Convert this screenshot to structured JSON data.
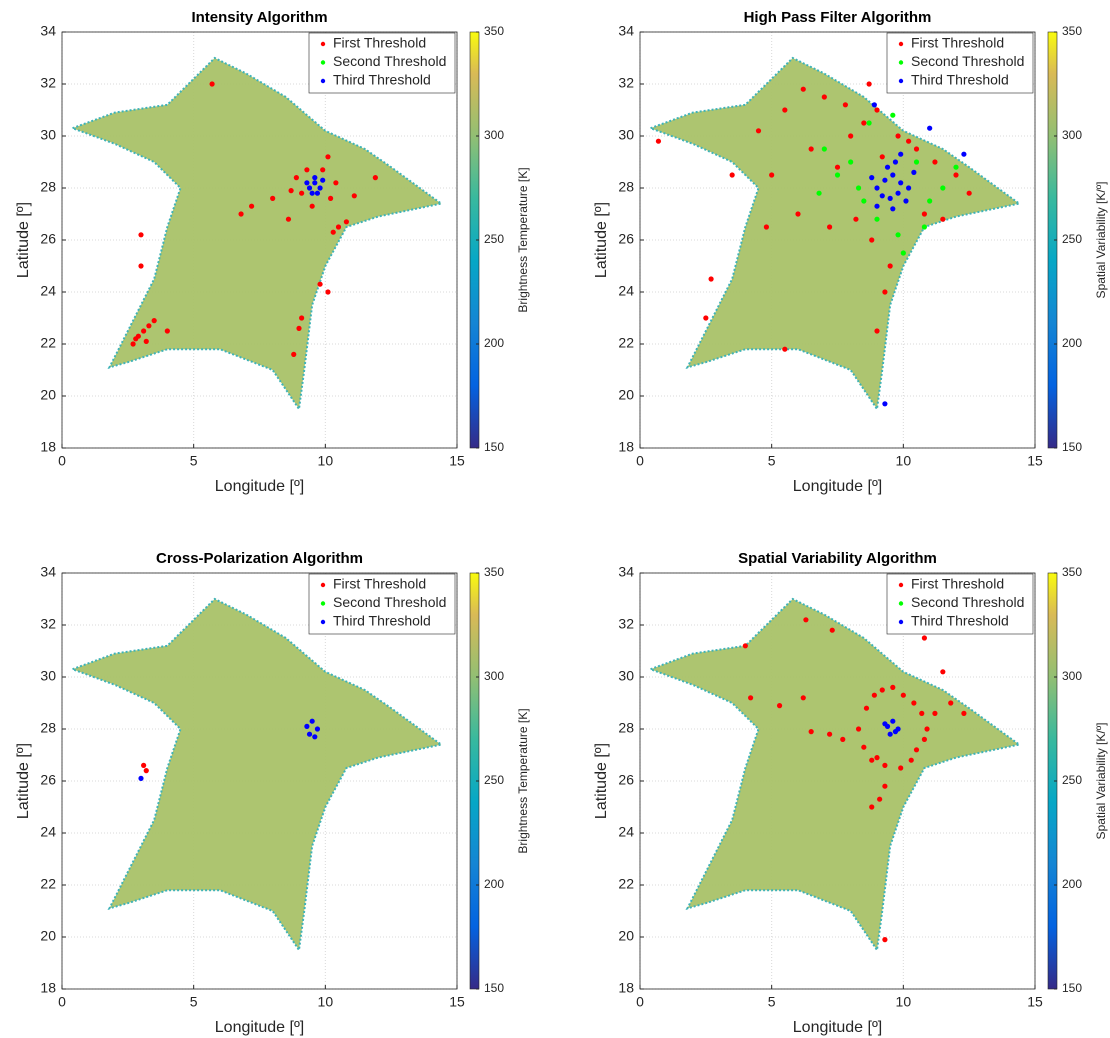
{
  "chart_data": [
    {
      "type": "scatter",
      "title": "Intensity Algorithm",
      "xlabel": "Longitude [º]",
      "ylabel": "Latitude [º]",
      "colorbar_label": "Brightness Temperature [K]",
      "xlim": [
        0,
        15
      ],
      "ylim": [
        18,
        34
      ],
      "xticks": [
        0,
        5,
        10,
        15
      ],
      "yticks": [
        18,
        20,
        22,
        24,
        26,
        28,
        30,
        32,
        34
      ],
      "clim": [
        150,
        350
      ],
      "cticks": [
        150,
        200,
        250,
        300,
        350
      ],
      "grid": true,
      "legend": "upper right",
      "footprint": {
        "color": "#a9c268",
        "x": [
          0.4,
          2,
          4,
          5.8,
          7,
          8.5,
          10,
          11.5,
          12.5,
          14.4,
          12,
          10.8,
          10,
          9.5,
          9.2,
          9,
          8,
          6,
          4,
          2.5,
          1.8,
          2.5,
          3.5,
          4,
          4.5,
          3.5,
          2
        ],
        "y": [
          30.3,
          30.9,
          31.2,
          33,
          32.4,
          31.5,
          30.2,
          29.5,
          28.8,
          27.4,
          26.9,
          26.5,
          25,
          23.5,
          21,
          19.5,
          21,
          21.8,
          21.8,
          21.3,
          21.1,
          22.5,
          24.5,
          26.5,
          28,
          29,
          29.7
        ]
      },
      "series": [
        {
          "name": "First Threshold",
          "color": "#ff0000",
          "x": [
            8.9,
            9.1,
            9.3,
            9.9,
            10.2,
            10.4,
            8.7,
            9.5,
            10.1,
            11.1,
            11.9,
            10.5,
            10.8,
            10.3,
            10.1,
            9.8,
            9.1,
            9.0,
            8.8,
            2.7,
            2.9,
            3.1,
            3.3,
            3.5,
            2.8,
            3.2,
            4.0,
            3.0,
            3.0,
            7.2,
            6.8,
            8.0,
            8.6,
            5.7
          ],
          "values": [
            28.4,
            27.8,
            28.7,
            28.7,
            27.6,
            28.2,
            27.9,
            27.3,
            29.2,
            27.7,
            28.4,
            26.5,
            26.7,
            26.3,
            24.0,
            24.3,
            23.0,
            22.6,
            21.6,
            22.0,
            22.3,
            22.5,
            22.7,
            22.9,
            22.2,
            22.1,
            22.5,
            26.2,
            25.0,
            27.3,
            27.0,
            27.6,
            26.8,
            32.0
          ]
        },
        {
          "name": "Second Threshold",
          "color": "#00ff00",
          "x": [],
          "values": []
        },
        {
          "name": "Third Threshold",
          "color": "#0000ff",
          "x": [
            9.4,
            9.6,
            9.8,
            9.5,
            9.7,
            9.3,
            9.9,
            9.6
          ],
          "values": [
            28.0,
            28.2,
            28.0,
            27.8,
            27.8,
            28.2,
            28.3,
            28.4
          ]
        }
      ]
    },
    {
      "type": "scatter",
      "title": "High Pass Filter Algorithm",
      "xlabel": "Longitude [º]",
      "ylabel": "Latitude [º]",
      "colorbar_label": "Spatial Variability [K/º]",
      "xlim": [
        0,
        15
      ],
      "ylim": [
        18,
        34
      ],
      "xticks": [
        0,
        5,
        10,
        15
      ],
      "yticks": [
        18,
        20,
        22,
        24,
        26,
        28,
        30,
        32,
        34
      ],
      "clim": [
        150,
        350
      ],
      "cticks": [
        150,
        200,
        250,
        300,
        350
      ],
      "grid": true,
      "legend": "upper right",
      "footprint": {
        "color": "#a9c268",
        "x": [
          0.4,
          2,
          4,
          5.8,
          7,
          8.5,
          10,
          11.5,
          12.5,
          14.4,
          12,
          10.8,
          10,
          9.5,
          9.2,
          9,
          8,
          6,
          4,
          2.5,
          1.8,
          2.5,
          3.5,
          4,
          4.5,
          3.5,
          2
        ],
        "y": [
          30.3,
          30.9,
          31.2,
          33,
          32.4,
          31.5,
          30.2,
          29.5,
          28.8,
          27.4,
          26.9,
          26.5,
          25,
          23.5,
          21,
          19.5,
          21,
          21.8,
          21.8,
          21.3,
          21.1,
          22.5,
          24.5,
          26.5,
          28,
          29,
          29.7
        ]
      },
      "series": [
        {
          "name": "First Threshold",
          "color": "#ff0000",
          "x": [
            5.5,
            6.2,
            7.0,
            7.8,
            8.5,
            9.0,
            9.8,
            10.5,
            11.2,
            12.0,
            4.5,
            5.0,
            6.0,
            7.2,
            8.2,
            8.8,
            10.8,
            11.5,
            6.5,
            7.5,
            8.0,
            9.2,
            10.2,
            9.5,
            9.3,
            9.0,
            2.5,
            2.7,
            5.5,
            0.7,
            3.5,
            4.8,
            12.5,
            8.7
          ],
          "values": [
            31.0,
            31.8,
            31.5,
            31.2,
            30.5,
            31.0,
            30.0,
            29.5,
            29.0,
            28.5,
            30.2,
            28.5,
            27.0,
            26.5,
            26.8,
            26.0,
            27.0,
            26.8,
            29.5,
            28.8,
            30.0,
            29.2,
            29.8,
            25.0,
            24.0,
            22.5,
            23.0,
            24.5,
            21.8,
            29.8,
            28.5,
            26.5,
            27.8,
            32.0
          ]
        },
        {
          "name": "Second Threshold",
          "color": "#00ff00",
          "x": [
            7.5,
            8.0,
            8.5,
            9.0,
            10.5,
            11.0,
            8.3,
            10.8,
            9.8,
            7.0,
            11.5,
            8.7,
            9.6,
            10.0,
            12.0,
            6.8
          ],
          "values": [
            28.5,
            29.0,
            27.5,
            26.8,
            29.0,
            27.5,
            28.0,
            26.5,
            26.2,
            29.5,
            28.0,
            30.5,
            30.8,
            25.5,
            28.8,
            27.8
          ]
        },
        {
          "name": "Third Threshold",
          "color": "#0000ff",
          "x": [
            9.0,
            9.3,
            9.6,
            9.9,
            10.2,
            9.2,
            9.5,
            9.8,
            10.1,
            9.4,
            9.7,
            8.8,
            10.4,
            9.0,
            9.6,
            9.9,
            11.0,
            8.9,
            12.3,
            9.3
          ],
          "values": [
            28.0,
            28.3,
            28.5,
            28.2,
            28.0,
            27.7,
            27.6,
            27.8,
            27.5,
            28.8,
            29.0,
            28.4,
            28.6,
            27.3,
            27.2,
            29.3,
            30.3,
            31.2,
            29.3,
            19.7
          ]
        }
      ]
    },
    {
      "type": "scatter",
      "title": "Cross-Polarization Algorithm",
      "xlabel": "Longitude [º]",
      "ylabel": "Latitude [º]",
      "colorbar_label": "Brightness Temperature [K]",
      "xlim": [
        0,
        15
      ],
      "ylim": [
        18,
        34
      ],
      "xticks": [
        0,
        5,
        10,
        15
      ],
      "yticks": [
        18,
        20,
        22,
        24,
        26,
        28,
        30,
        32,
        34
      ],
      "clim": [
        150,
        350
      ],
      "cticks": [
        150,
        200,
        250,
        300,
        350
      ],
      "grid": true,
      "legend": "upper right",
      "footprint": {
        "color": "#a9c268",
        "x": [
          0.4,
          2,
          4,
          5.8,
          7,
          8.5,
          10,
          11.5,
          12.5,
          14.4,
          12,
          10.8,
          10,
          9.5,
          9.2,
          9,
          8,
          6,
          4,
          2.5,
          1.8,
          2.5,
          3.5,
          4,
          4.5,
          3.5,
          2
        ],
        "y": [
          30.3,
          30.9,
          31.2,
          33,
          32.4,
          31.5,
          30.2,
          29.5,
          28.8,
          27.4,
          26.9,
          26.5,
          25,
          23.5,
          21,
          19.5,
          21,
          21.8,
          21.8,
          21.3,
          21.1,
          22.5,
          24.5,
          26.5,
          28,
          29,
          29.7
        ]
      },
      "series": [
        {
          "name": "First Threshold",
          "color": "#ff0000",
          "x": [
            3.1,
            3.2
          ],
          "values": [
            26.6,
            26.4
          ]
        },
        {
          "name": "Second Threshold",
          "color": "#00ff00",
          "x": [],
          "values": []
        },
        {
          "name": "Third Threshold",
          "color": "#0000ff",
          "x": [
            9.3,
            9.5,
            9.7,
            9.4,
            9.6,
            3.0
          ],
          "values": [
            28.1,
            28.3,
            28.0,
            27.8,
            27.7,
            26.1
          ]
        }
      ]
    },
    {
      "type": "scatter",
      "title": "Spatial Variability Algorithm",
      "xlabel": "Longitude [º]",
      "ylabel": "Latitude [º]",
      "colorbar_label": "Spatial Variability [K/º]",
      "xlim": [
        0,
        15
      ],
      "ylim": [
        18,
        34
      ],
      "xticks": [
        0,
        5,
        10,
        15
      ],
      "yticks": [
        18,
        20,
        22,
        24,
        26,
        28,
        30,
        32,
        34
      ],
      "clim": [
        150,
        350
      ],
      "cticks": [
        150,
        200,
        250,
        300,
        350
      ],
      "grid": true,
      "legend": "upper right",
      "footprint": {
        "color": "#a9c268",
        "x": [
          0.4,
          2,
          4,
          5.8,
          7,
          8.5,
          10,
          11.5,
          12.5,
          14.4,
          12,
          10.8,
          10,
          9.5,
          9.2,
          9,
          8,
          6,
          4,
          2.5,
          1.8,
          2.5,
          3.5,
          4,
          4.5,
          3.5,
          2
        ],
        "y": [
          30.3,
          30.9,
          31.2,
          33,
          32.4,
          31.5,
          30.2,
          29.5,
          28.8,
          27.4,
          26.9,
          26.5,
          25,
          23.5,
          21,
          19.5,
          21,
          21.8,
          21.8,
          21.3,
          21.1,
          22.5,
          24.5,
          26.5,
          28,
          29,
          29.7
        ]
      },
      "series": [
        {
          "name": "First Threshold",
          "color": "#ff0000",
          "x": [
            8.3,
            8.6,
            8.9,
            9.2,
            9.6,
            10.0,
            10.4,
            10.7,
            10.9,
            8.5,
            9.0,
            10.5,
            10.8,
            8.8,
            9.3,
            9.9,
            10.3,
            7.7,
            7.2,
            6.5,
            11.2,
            11.8,
            12.3,
            9.3,
            9.1,
            8.8,
            10.8,
            11.5,
            6.2,
            4.0,
            4.2,
            6.3,
            7.3,
            5.3,
            9.3
          ],
          "values": [
            28.0,
            28.8,
            29.3,
            29.5,
            29.6,
            29.3,
            29.0,
            28.6,
            28.0,
            27.3,
            26.9,
            27.2,
            27.6,
            26.8,
            26.6,
            26.5,
            26.8,
            27.6,
            27.8,
            27.9,
            28.6,
            29.0,
            28.6,
            25.8,
            25.3,
            25.0,
            31.5,
            30.2,
            29.2,
            31.2,
            29.2,
            32.2,
            31.8,
            28.9,
            19.9
          ]
        },
        {
          "name": "Second Threshold",
          "color": "#00ff00",
          "x": [],
          "values": []
        },
        {
          "name": "Third Threshold",
          "color": "#0000ff",
          "x": [
            9.4,
            9.6,
            9.8,
            9.5,
            9.7,
            9.3
          ],
          "values": [
            28.1,
            28.3,
            28.0,
            27.8,
            27.9,
            28.2
          ]
        }
      ]
    }
  ]
}
